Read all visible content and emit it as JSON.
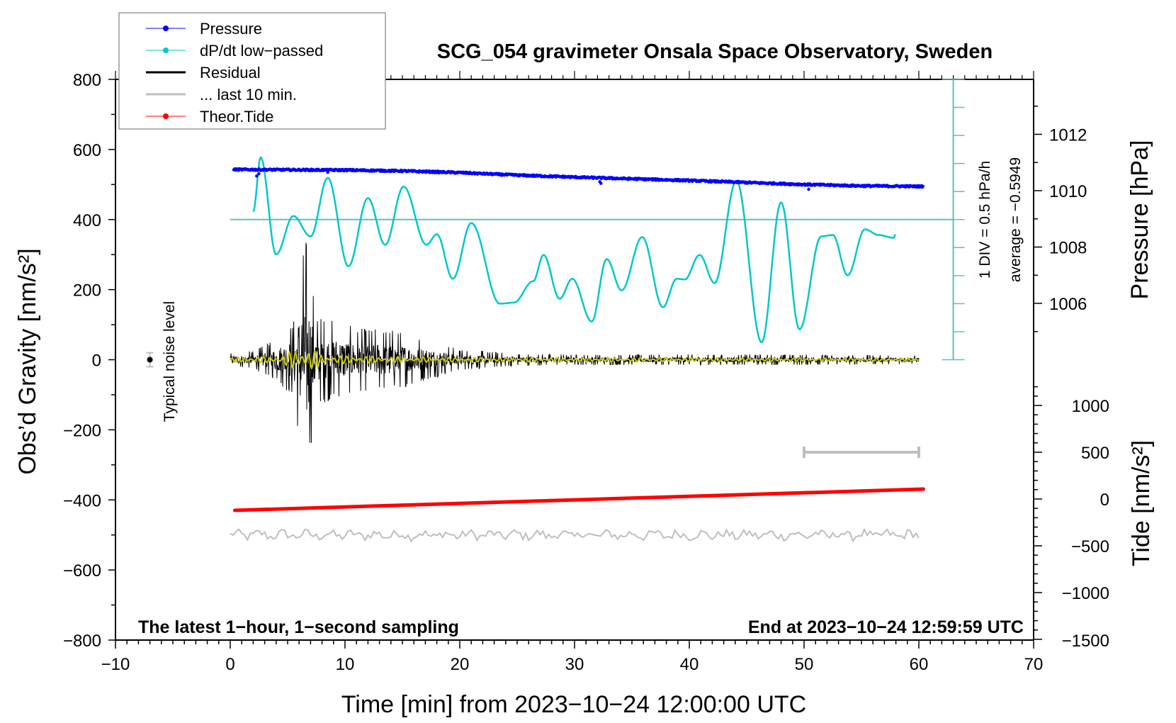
{
  "chart_data": {
    "type": "line",
    "title": "SCG_054 gravimeter Onsala Space Observatory, Sweden",
    "xlabel": "Time [min] from 2023−10−24 12:00:00 UTC",
    "ylabel_left": "Obs’d Gravity [nm/s²]",
    "ylabel_right_pressure": "Pressure [hPa]",
    "ylabel_right_tide": "Tide [nm/s²]",
    "xlim": [
      -10,
      70
    ],
    "ylim_left": [
      -800,
      800
    ],
    "x_ticks": [
      -10,
      0,
      10,
      20,
      30,
      40,
      50,
      60,
      70
    ],
    "x_tick_labels": [
      "−10",
      "0",
      "10",
      "20",
      "30",
      "40",
      "50",
      "60",
      "70"
    ],
    "y_ticks_left": [
      -800,
      -600,
      -400,
      -200,
      0,
      200,
      400,
      600,
      800
    ],
    "y_tick_labels_left": [
      "−800",
      "−600",
      "−400",
      "−200",
      "0",
      "200",
      "400",
      "600",
      "800"
    ],
    "pressure_axis": {
      "ticks": [
        1006,
        1008,
        1010,
        1012
      ],
      "tick_labels": [
        "1006",
        "1008",
        "1010",
        "1012"
      ],
      "range": [
        1004.2,
        1013.9
      ]
    },
    "tide_axis": {
      "ticks": [
        -1000,
        -500,
        0,
        500,
        1000
      ],
      "tick_labels": [
        "−1000",
        "−500",
        "0",
        "500",
        "1000"
      ],
      "range": [
        -1500,
        1500
      ]
    },
    "notes": {
      "bottom_left": "The latest 1−hour, 1−second sampling",
      "bottom_right": "End at 2023−10−24 12:59:59 UTC",
      "scale_div": "1 DIV = 0.5 hPa/h",
      "scale_average": "average = −0.5949",
      "noise_label": "Typical noise level"
    },
    "legend": {
      "position": "top-left",
      "entries": [
        {
          "label": "Pressure",
          "color": "#0000ff",
          "marker": "dot"
        },
        {
          "label": "dP/dt low−passed",
          "color": "#00c8c8",
          "marker": "dot"
        },
        {
          "label": "Residual",
          "color": "#000000",
          "marker": "line"
        },
        {
          "label": "... last 10 min.",
          "color": "#bebebe",
          "marker": "line"
        },
        {
          "label": "Theor.Tide",
          "color": "#ff0000",
          "marker": "dot"
        }
      ]
    },
    "series": [
      {
        "name": "Pressure",
        "axis": "pressure",
        "color": "#0000ff",
        "x": [
          0.3,
          5,
          10,
          15,
          20,
          25,
          30,
          35,
          40,
          45,
          50,
          55,
          60.4
        ],
        "values": [
          1010.75,
          1010.74,
          1010.73,
          1010.7,
          1010.64,
          1010.55,
          1010.48,
          1010.42,
          1010.36,
          1010.29,
          1010.22,
          1010.17,
          1010.15
        ]
      },
      {
        "name": "dP/dt low-passed",
        "axis": "left",
        "color": "#00c8c8",
        "x": [
          2.0,
          2.65,
          4.0,
          5.5,
          7.0,
          8.5,
          10.3,
          12.0,
          13.5,
          15.1,
          17.1,
          18.0,
          19.4,
          21.0,
          23.5,
          24.7,
          26.4,
          27.3,
          28.7,
          29.8,
          31.5,
          32.8,
          34.1,
          35.9,
          37.7,
          38.9,
          39.6,
          40.9,
          42.2,
          44.1,
          46.3,
          48.0,
          49.6,
          51.5,
          52.5,
          53.8,
          55.3,
          56.5,
          57.8,
          57.96
        ],
        "values": [
          423,
          577,
          301,
          410,
          352,
          519,
          267,
          461,
          328,
          494,
          328,
          358,
          231,
          390,
          160,
          163,
          224,
          299,
          174,
          231,
          109,
          287,
          198,
          350,
          150,
          231,
          229,
          299,
          219,
          510,
          50,
          449,
          87,
          352,
          356,
          241,
          372,
          356,
          348,
          358
        ]
      },
      {
        "name": "dP/dt zero line",
        "axis": "left",
        "color": "#5bc0be",
        "x": [
          0,
          63
        ],
        "values": [
          400,
          400
        ]
      },
      {
        "name": "Residual",
        "axis": "left",
        "color": "#000000",
        "x": [
          0,
          2,
          4,
          5.5,
          6.3,
          6.6,
          7.5,
          9.5,
          11,
          14,
          17,
          20,
          25,
          30,
          40,
          50,
          60
        ],
        "amplitude": [
          20,
          25,
          60,
          110,
          310,
          360,
          130,
          110,
          90,
          90,
          60,
          30,
          18,
          15,
          15,
          15,
          12
        ]
      },
      {
        "name": "Residual smoothed",
        "axis": "left",
        "color": "#cccc00",
        "x": [
          0,
          4,
          6,
          6.6,
          8,
          12,
          20,
          60
        ],
        "amplitude": [
          6,
          10,
          30,
          45,
          12,
          10,
          6,
          4
        ]
      },
      {
        "name": "... last 10 min.",
        "axis": "left",
        "color": "#bebebe",
        "x": [
          0,
          60
        ],
        "values": [
          -500,
          -500
        ],
        "amplitude": 12
      },
      {
        "name": "Theor.Tide",
        "axis": "tide",
        "color": "#ff0000",
        "x": [
          0.4,
          60.4
        ],
        "values": [
          -121,
          106
        ]
      }
    ],
    "annotations": {
      "noise_marker": {
        "x": -7,
        "y": 0,
        "error": 20
      },
      "last10_bar": {
        "x_start": 50,
        "x_end": 60,
        "tide_value": 500
      },
      "scale_bar": {
        "x": 63,
        "y_from": 0,
        "y_to": 800,
        "div": 80
      }
    }
  }
}
